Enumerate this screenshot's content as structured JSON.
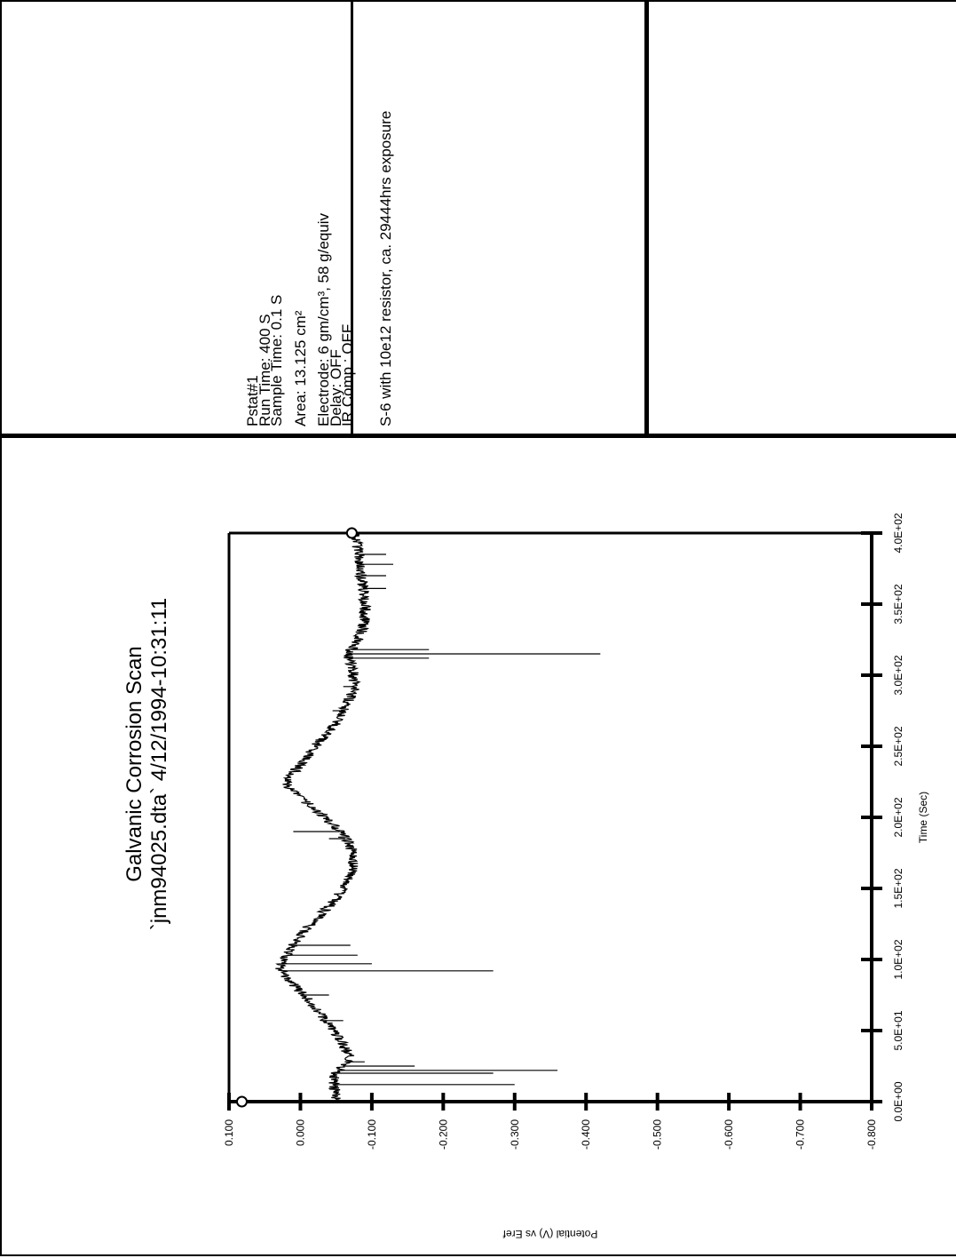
{
  "info": {
    "pstat": "Pstat#1",
    "run_time": "Run Time: 400 S",
    "sample_time": "Sample Time: 0.1 S",
    "area": "Area: 13.125 cm²",
    "electrode": "Electrode: 6 gm/cm³, 58 g/equiv",
    "delay": "Delay: OFF",
    "ir_comp": "IR Comp.: OFF"
  },
  "note": "S-6 with 10e12 resistor, ca. 29444hrs exposure",
  "chart_data": {
    "type": "line",
    "title": "Galvanic Corrosion Scan",
    "subtitle": "`jnm94025.dta` 4/12/1994-10:31:11",
    "xlabel": "Time (Sec)",
    "ylabel": "Potential (V) vs Eref",
    "xlim": [
      0,
      400
    ],
    "ylim": [
      -0.8,
      0.1
    ],
    "x_ticks": [
      "0.0E+00",
      "5.0E+01",
      "1.0E+02",
      "1.5E+02",
      "2.0E+02",
      "2.5E+02",
      "3.0E+02",
      "3.5E+02",
      "4.0E+02"
    ],
    "x_tick_values": [
      0,
      50,
      100,
      150,
      200,
      250,
      300,
      350,
      400
    ],
    "y_ticks": [
      "0.100",
      "0.000",
      "-0.100",
      "-0.200",
      "-0.300",
      "-0.400",
      "-0.500",
      "-0.600",
      "-0.700",
      "-0.800"
    ],
    "y_tick_values": [
      0.1,
      0,
      -0.1,
      -0.2,
      -0.3,
      -0.4,
      -0.5,
      -0.6,
      -0.7,
      -0.8
    ],
    "grid": false,
    "series": [
      {
        "x": [
          0,
          10,
          20,
          25,
          30,
          40,
          50,
          60,
          70,
          80,
          90,
          95,
          100,
          110,
          120,
          130,
          140,
          150,
          160,
          170,
          180,
          190,
          200,
          210,
          220,
          225,
          230,
          240,
          250,
          260,
          270,
          280,
          290,
          300,
          310,
          315,
          320,
          330,
          340,
          350,
          360,
          370,
          380,
          390,
          400
        ],
        "y": [
          -0.05,
          -0.048,
          -0.047,
          -0.06,
          -0.07,
          -0.06,
          -0.045,
          -0.03,
          -0.015,
          0.005,
          0.025,
          0.03,
          0.022,
          0.01,
          -0.005,
          -0.025,
          -0.045,
          -0.06,
          -0.07,
          -0.075,
          -0.07,
          -0.055,
          -0.035,
          -0.01,
          0.015,
          0.02,
          0.012,
          -0.005,
          -0.02,
          -0.04,
          -0.055,
          -0.065,
          -0.075,
          -0.075,
          -0.07,
          -0.065,
          -0.075,
          -0.085,
          -0.09,
          -0.09,
          -0.088,
          -0.085,
          -0.083,
          -0.08,
          -0.078
        ],
        "noise_amplitude": 0.008,
        "spikes": [
          {
            "x": 12,
            "y": -0.3
          },
          {
            "x": 20,
            "y": -0.27
          },
          {
            "x": 22,
            "y": -0.36
          },
          {
            "x": 25,
            "y": -0.16
          },
          {
            "x": 28,
            "y": -0.09
          },
          {
            "x": 57,
            "y": -0.06
          },
          {
            "x": 75,
            "y": -0.04
          },
          {
            "x": 92,
            "y": -0.27
          },
          {
            "x": 97,
            "y": -0.1
          },
          {
            "x": 103,
            "y": -0.08
          },
          {
            "x": 110,
            "y": -0.07
          },
          {
            "x": 185,
            "y": -0.04
          },
          {
            "x": 190,
            "y": 0.01
          },
          {
            "x": 275,
            "y": -0.045
          },
          {
            "x": 285,
            "y": -0.07
          },
          {
            "x": 292,
            "y": -0.06
          },
          {
            "x": 312,
            "y": -0.18
          },
          {
            "x": 315,
            "y": -0.42
          },
          {
            "x": 318,
            "y": -0.18
          },
          {
            "x": 361,
            "y": -0.12
          },
          {
            "x": 370,
            "y": -0.12
          },
          {
            "x": 378,
            "y": -0.13
          },
          {
            "x": 385,
            "y": -0.12
          }
        ]
      }
    ],
    "start_marker": {
      "x": 0,
      "y": 0.082
    },
    "end_marker": {
      "x": 400,
      "y": -0.072
    }
  }
}
